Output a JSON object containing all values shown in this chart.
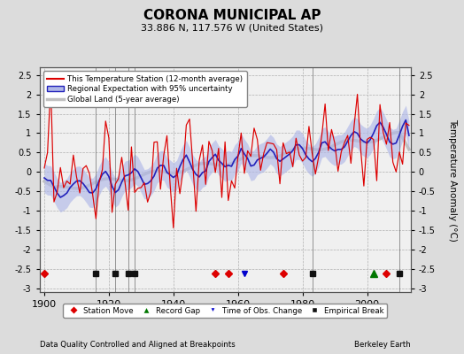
{
  "title": "CORONA MUNICIPAL AP",
  "subtitle": "33.886 N, 117.576 W (United States)",
  "ylabel": "Temperature Anomaly (°C)",
  "footer_left": "Data Quality Controlled and Aligned at Breakpoints",
  "footer_right": "Berkeley Earth",
  "ylim": [
    -3.1,
    2.7
  ],
  "yticks": [
    -3,
    -2.5,
    -2,
    -1.5,
    -1,
    -0.5,
    0,
    0.5,
    1,
    1.5,
    2,
    2.5
  ],
  "xlim": [
    1898.5,
    2013.5
  ],
  "xticks": [
    1900,
    1920,
    1940,
    1960,
    1980,
    2000
  ],
  "bg_color": "#dcdcdc",
  "plot_bg_color": "#f0f0f0",
  "station_color": "#dd0000",
  "regional_color": "#2222bb",
  "regional_fill_color": "#b0b8e8",
  "global_color": "#c0c0c0",
  "event_markers": {
    "station_move": {
      "years": [
        1900,
        1953,
        1957,
        1974,
        2006
      ],
      "color": "#dd0000",
      "marker": "D"
    },
    "record_gap": {
      "years": [
        2002
      ],
      "color": "#007700",
      "marker": "^"
    },
    "obs_change": {
      "years": [
        1962
      ],
      "color": "#0000cc",
      "marker": "v"
    },
    "emp_break": {
      "years": [
        1916,
        1922,
        1926,
        1928,
        1983,
        2010
      ],
      "color": "#111111",
      "marker": "s"
    }
  },
  "seed": 137
}
